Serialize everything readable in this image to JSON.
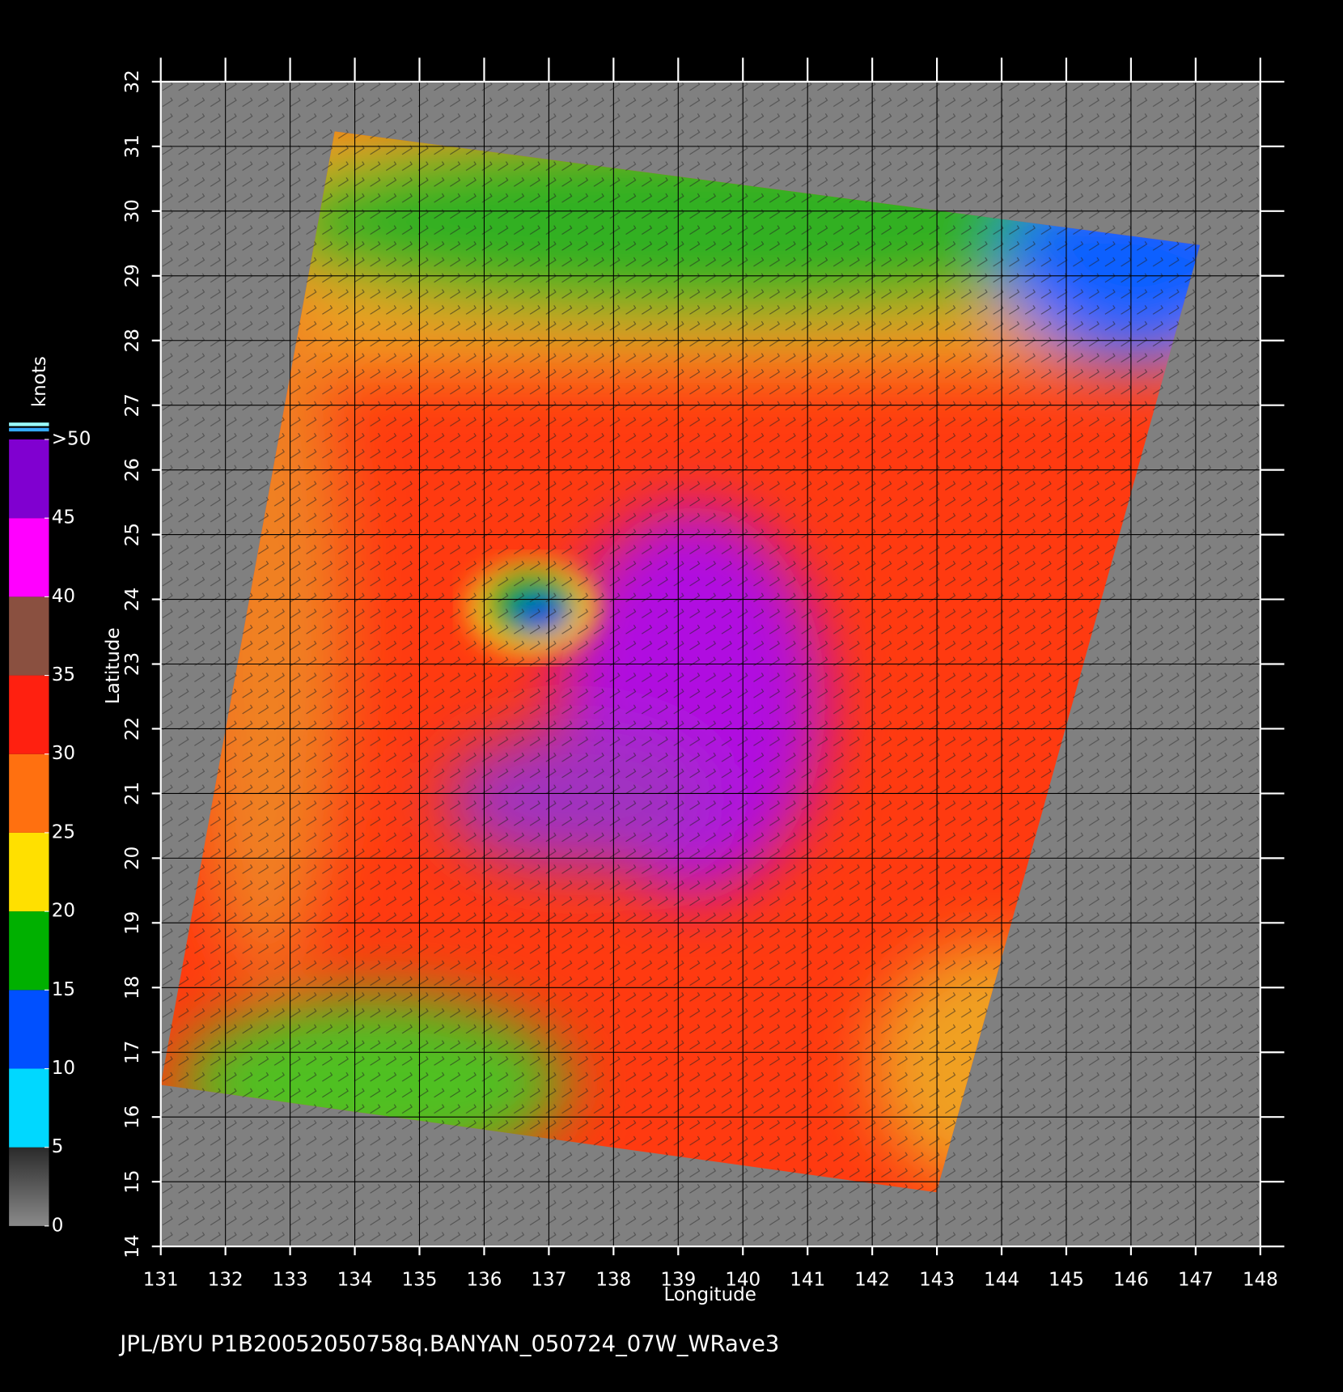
{
  "chart_data": {
    "type": "map",
    "x_label": "Longitude",
    "y_label": "Latitude",
    "xlim": [
      131,
      148
    ],
    "ylim": [
      14,
      32
    ],
    "xticks": [
      131,
      132,
      133,
      134,
      135,
      136,
      137,
      138,
      139,
      140,
      141,
      142,
      143,
      144,
      145,
      146,
      147,
      148
    ],
    "yticks": [
      14,
      15,
      16,
      17,
      18,
      19,
      20,
      21,
      22,
      23,
      24,
      25,
      26,
      27,
      28,
      29,
      30,
      31,
      32
    ],
    "grid": true,
    "colorbar": {
      "title": "knots",
      "lim": [
        0,
        50
      ],
      "ticks": [
        0,
        5,
        10,
        15,
        20,
        25,
        30,
        35,
        40,
        {
          "value": 50,
          "label": ">50"
        }
      ],
      "label_ticks": [
        45
      ],
      "colors": [
        "#5a5a5a",
        "#00d8ff",
        "#0050ff",
        "#00b000",
        "#ffe000",
        "#ff7010",
        "#ff2010",
        "#8a5040",
        "#ff00ff",
        "#8000d0"
      ]
    },
    "footer": "JPL/BYU  P1B20052050758q.BANYAN_050724_07W_WRave3"
  }
}
